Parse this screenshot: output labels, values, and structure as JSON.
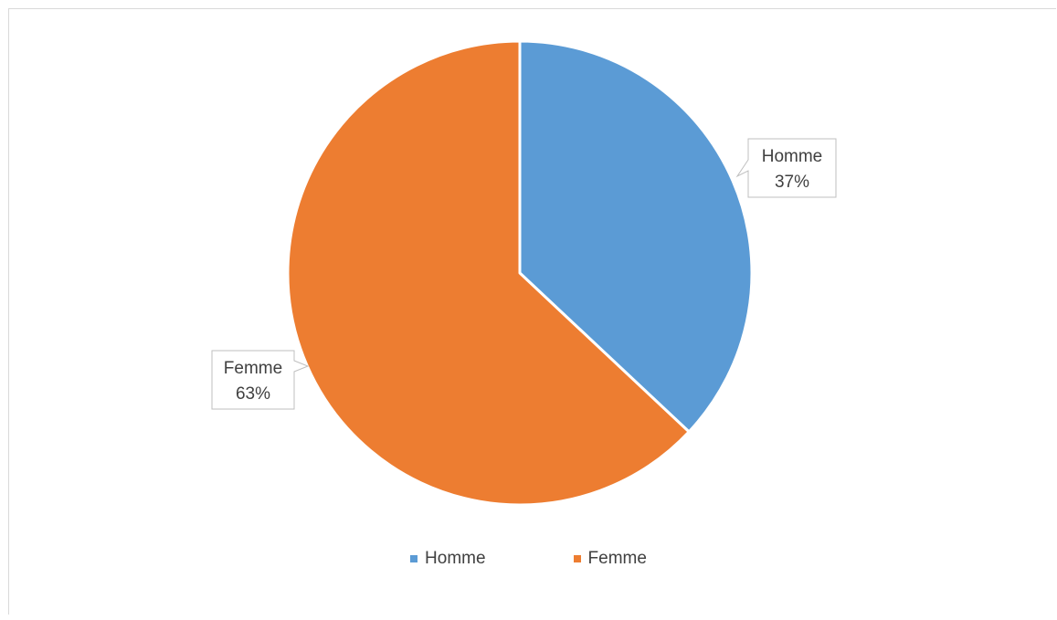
{
  "chart_data": {
    "type": "pie",
    "categories": [
      "Homme",
      "Femme"
    ],
    "values": [
      37,
      63
    ],
    "data_labels": [
      {
        "category": "Homme",
        "text": "37%"
      },
      {
        "category": "Femme",
        "text": "63%"
      }
    ],
    "colors": [
      "#5b9bd5",
      "#ed7d31"
    ],
    "legend": {
      "position": "bottom",
      "items": [
        "Homme",
        "Femme"
      ]
    }
  }
}
